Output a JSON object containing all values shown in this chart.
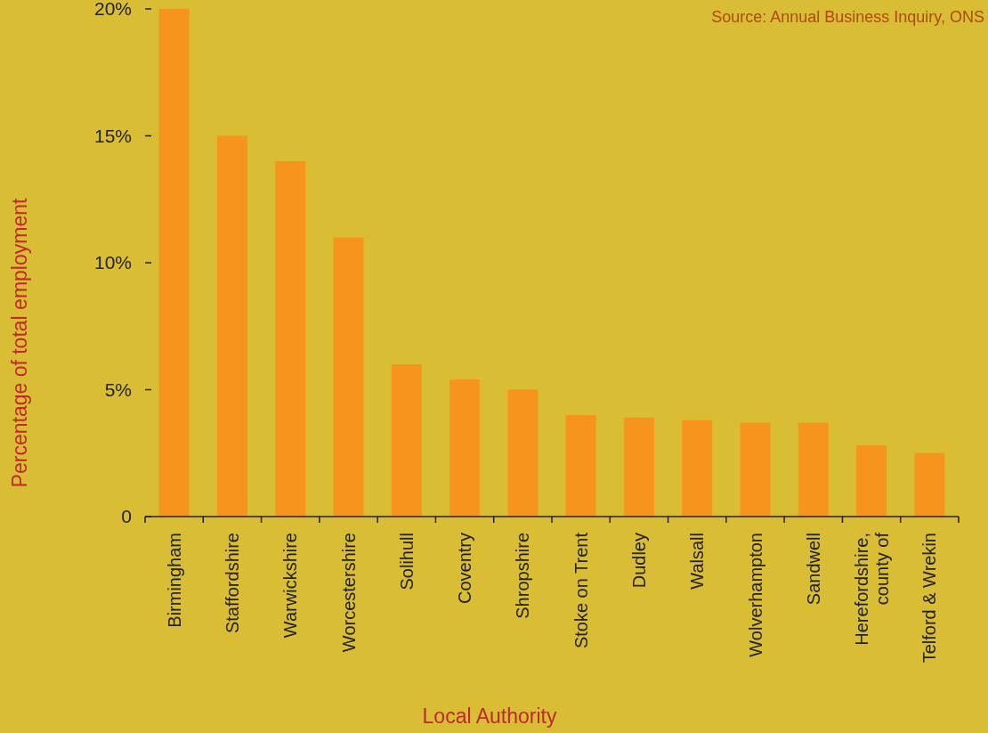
{
  "chart_data": {
    "type": "bar",
    "xlabel": "Local Authority",
    "ylabel": "Percentage of total employment",
    "annotations": [
      "Source: Annual Business Inquiry, ONS"
    ],
    "categories": [
      "Birmingham",
      "Staffordshire",
      "Warwickshire",
      "Worcestershire",
      "Solihull",
      "Coventry",
      "Shropshire",
      "Stoke on Trent",
      "Dudley",
      "Walsall",
      "Wolverhampton",
      "Sandwell",
      "Herefordshire, county of",
      "Telford & Wrekin"
    ],
    "values": [
      20,
      15,
      14,
      11,
      6,
      5.4,
      5,
      4,
      3.9,
      3.8,
      3.7,
      3.7,
      2.8,
      2.5
    ],
    "color": "#f7941d",
    "ylim": [
      0,
      20
    ],
    "yticks": [
      {
        "value": 0,
        "label": "0"
      },
      {
        "value": 5,
        "label": "5%"
      },
      {
        "value": 10,
        "label": "10%"
      },
      {
        "value": 15,
        "label": "15%"
      },
      {
        "value": 20,
        "label": "20%"
      }
    ],
    "grid": false
  }
}
